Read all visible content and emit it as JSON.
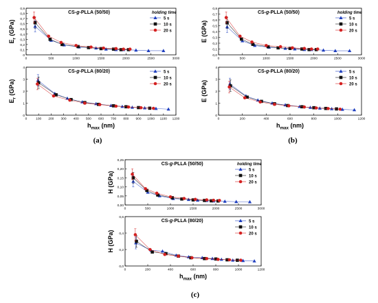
{
  "chart_data": [
    {
      "type": "scatter",
      "subplot": "a-top",
      "title": "CS-g-PLLA (50/50)",
      "ylabel": "E_r (GPa)",
      "legend_title": "holding time",
      "ylim": [
        0,
        0.9
      ],
      "yticks": [
        "0",
        "0,1",
        "0,2",
        "0,3",
        "0,4",
        "0,5",
        "0,6",
        "0,7",
        "0,8",
        "0,9"
      ],
      "xlim": [
        0,
        3000
      ],
      "xticks": [
        "0",
        "500",
        "1000",
        "1500",
        "2000",
        "2500",
        "3000"
      ],
      "series": [
        {
          "name": "5 s",
          "color": "#1f3fbf",
          "marker": "triangle",
          "x": [
            180,
            500,
            760,
            1060,
            1400,
            1600,
            1800,
            1950,
            2200,
            2450,
            2750
          ],
          "y": [
            0.55,
            0.28,
            0.19,
            0.15,
            0.13,
            0.11,
            0.1,
            0.1,
            0.09,
            0.08,
            0.08
          ]
        },
        {
          "name": "10 s",
          "color": "#111111",
          "marker": "square",
          "x": [
            180,
            480,
            720,
            1040,
            1250,
            1500,
            1750,
            1900,
            2050
          ],
          "y": [
            0.62,
            0.3,
            0.2,
            0.16,
            0.14,
            0.12,
            0.11,
            0.1,
            0.1
          ]
        },
        {
          "name": "20 s",
          "color": "#d42020",
          "marker": "circle",
          "x": [
            160,
            450,
            700,
            1000,
            1300,
            1550,
            1800,
            1950,
            2080
          ],
          "y": [
            0.72,
            0.36,
            0.24,
            0.18,
            0.15,
            0.13,
            0.12,
            0.11,
            0.11
          ]
        }
      ]
    },
    {
      "type": "scatter",
      "subplot": "a-bottom",
      "title": "CS-g-PLLA (80/20)",
      "ylabel": "E_r (GPa)",
      "xlabel": "h_max (nm)",
      "legend_title": "",
      "ylim": [
        0,
        4
      ],
      "yticks": [
        "0",
        "1",
        "2",
        "3",
        "4"
      ],
      "xlim": [
        0,
        1200
      ],
      "xticks": [
        "0",
        "100",
        "200",
        "300",
        "400",
        "500",
        "600",
        "700",
        "800",
        "900",
        "1000",
        "1100",
        "1200"
      ],
      "series": [
        {
          "name": "5 s",
          "color": "#1f3fbf",
          "marker": "triangle",
          "x": [
            95,
            230,
            330,
            450,
            560,
            680,
            770,
            850,
            950,
            1040,
            1140
          ],
          "y": [
            2.9,
            1.8,
            1.4,
            1.1,
            0.95,
            0.8,
            0.72,
            0.65,
            0.6,
            0.55,
            0.5
          ]
        },
        {
          "name": "10 s",
          "color": "#111111",
          "marker": "square",
          "x": [
            100,
            240,
            360,
            470,
            580,
            700,
            800,
            900,
            990
          ],
          "y": [
            2.7,
            1.7,
            1.3,
            1.05,
            0.9,
            0.78,
            0.7,
            0.63,
            0.58
          ]
        },
        {
          "name": "20 s",
          "color": "#d42020",
          "marker": "circle",
          "x": [
            90,
            220,
            350,
            470,
            590,
            720,
            820,
            920,
            1020
          ],
          "y": [
            2.6,
            1.6,
            1.25,
            1.0,
            0.88,
            0.75,
            0.68,
            0.62,
            0.57
          ]
        }
      ]
    },
    {
      "type": "scatter",
      "subplot": "b-top",
      "title": "CS-g-PLLA (50/50)",
      "ylabel": "E (GPa)",
      "legend_title": "holding time",
      "ylim": [
        0,
        0.8
      ],
      "yticks": [
        "0,0",
        "0,1",
        "0,2",
        "0,3",
        "0,4",
        "0,5",
        "0,6",
        "0,7",
        "0,8"
      ],
      "xlim": [
        0,
        3000
      ],
      "xticks": [
        "0",
        "500",
        "1000",
        "1500",
        "2000",
        "2500",
        "3000"
      ],
      "series": [
        {
          "name": "5 s",
          "color": "#1f3fbf",
          "marker": "triangle",
          "x": [
            180,
            500,
            760,
            1060,
            1400,
            1600,
            1800,
            1950,
            2200,
            2450,
            2750
          ],
          "y": [
            0.48,
            0.24,
            0.16,
            0.13,
            0.11,
            0.1,
            0.09,
            0.09,
            0.08,
            0.07,
            0.07
          ]
        },
        {
          "name": "10 s",
          "color": "#111111",
          "marker": "square",
          "x": [
            180,
            480,
            720,
            1040,
            1250,
            1500,
            1750,
            1900,
            2050
          ],
          "y": [
            0.55,
            0.27,
            0.18,
            0.14,
            0.12,
            0.11,
            0.1,
            0.09,
            0.09
          ]
        },
        {
          "name": "20 s",
          "color": "#d42020",
          "marker": "circle",
          "x": [
            160,
            450,
            700,
            1000,
            1300,
            1550,
            1800,
            1950,
            2080
          ],
          "y": [
            0.64,
            0.32,
            0.22,
            0.16,
            0.14,
            0.12,
            0.11,
            0.1,
            0.1
          ]
        }
      ]
    },
    {
      "type": "scatter",
      "subplot": "b-bottom",
      "title": "CS-g-PLLA (80/20)",
      "ylabel": "E (GPa)",
      "xlabel": "h_max (nm)",
      "legend_title": "",
      "ylim": [
        0,
        4
      ],
      "yticks": [
        "0",
        "1",
        "2",
        "3",
        "4"
      ],
      "xlim": [
        0,
        1200
      ],
      "xticks": [
        "0",
        "200",
        "400",
        "600",
        "800",
        "1000",
        "1200"
      ],
      "series": [
        {
          "name": "5 s",
          "color": "#1f3fbf",
          "marker": "triangle",
          "x": [
            95,
            230,
            330,
            450,
            560,
            680,
            770,
            850,
            950,
            1040,
            1140
          ],
          "y": [
            2.6,
            1.6,
            1.25,
            1.0,
            0.85,
            0.72,
            0.64,
            0.58,
            0.53,
            0.48,
            0.44
          ]
        },
        {
          "name": "10 s",
          "color": "#111111",
          "marker": "square",
          "x": [
            100,
            240,
            360,
            470,
            580,
            700,
            800,
            900,
            990
          ],
          "y": [
            2.45,
            1.5,
            1.15,
            0.95,
            0.8,
            0.7,
            0.62,
            0.56,
            0.52
          ]
        },
        {
          "name": "20 s",
          "color": "#d42020",
          "marker": "circle",
          "x": [
            90,
            220,
            350,
            470,
            590,
            720,
            820,
            920,
            1020
          ],
          "y": [
            2.35,
            1.45,
            1.1,
            0.9,
            0.78,
            0.68,
            0.6,
            0.55,
            0.5
          ]
        }
      ]
    },
    {
      "type": "scatter",
      "subplot": "c-top",
      "title": "CS-g-PLLA (50/50)",
      "ylabel": "H (GPa)",
      "legend_title": "holding time",
      "ylim": [
        0,
        0.25
      ],
      "yticks": [
        "0,00",
        "0,05",
        "0,10",
        "0,15",
        "0,20",
        "0,25"
      ],
      "xlim": [
        0,
        3000
      ],
      "xticks": [
        "0",
        "500",
        "1000",
        "1500",
        "2000",
        "2500",
        "3000"
      ],
      "series": [
        {
          "name": "5 s",
          "color": "#1f3fbf",
          "marker": "triangle",
          "x": [
            180,
            500,
            760,
            1060,
            1400,
            1600,
            1800,
            1950,
            2200,
            2450,
            2750
          ],
          "y": [
            0.13,
            0.07,
            0.05,
            0.035,
            0.03,
            0.026,
            0.024,
            0.022,
            0.02,
            0.018,
            0.017
          ]
        },
        {
          "name": "10 s",
          "color": "#111111",
          "marker": "square",
          "x": [
            180,
            480,
            720,
            1040,
            1250,
            1500,
            1750,
            1900,
            2050
          ],
          "y": [
            0.15,
            0.08,
            0.055,
            0.04,
            0.033,
            0.028,
            0.025,
            0.023,
            0.022
          ]
        },
        {
          "name": "20 s",
          "color": "#d42020",
          "marker": "circle",
          "x": [
            160,
            450,
            700,
            1000,
            1300,
            1550,
            1800,
            1950,
            2080
          ],
          "y": [
            0.17,
            0.09,
            0.065,
            0.045,
            0.036,
            0.031,
            0.028,
            0.026,
            0.025
          ]
        }
      ]
    },
    {
      "type": "scatter",
      "subplot": "c-bottom",
      "title": "CS-g-PLLA (80/20)",
      "ylabel": "H (GPa)",
      "xlabel": "h_max (nm)",
      "legend_title": "",
      "ylim": [
        0,
        0.6
      ],
      "yticks": [
        "0,0",
        "0,2",
        "0,4",
        "0,6"
      ],
      "xlim": [
        0,
        1200
      ],
      "xticks": [
        "0",
        "200",
        "400",
        "600",
        "800",
        "1000",
        "1200"
      ],
      "series": [
        {
          "name": "5 s",
          "color": "#1f3fbf",
          "marker": "triangle",
          "x": [
            95,
            230,
            330,
            450,
            560,
            680,
            770,
            850,
            950,
            1040,
            1140
          ],
          "y": [
            0.28,
            0.19,
            0.18,
            0.13,
            0.11,
            0.1,
            0.09,
            0.08,
            0.07,
            0.065,
            0.06
          ]
        },
        {
          "name": "10 s",
          "color": "#111111",
          "marker": "square",
          "x": [
            100,
            240,
            360,
            470,
            580,
            700,
            800,
            900,
            990
          ],
          "y": [
            0.3,
            0.17,
            0.15,
            0.12,
            0.1,
            0.09,
            0.085,
            0.075,
            0.07
          ]
        },
        {
          "name": "20 s",
          "color": "#d42020",
          "marker": "circle",
          "x": [
            90,
            220,
            350,
            470,
            590,
            720,
            820,
            920,
            1020
          ],
          "y": [
            0.38,
            0.2,
            0.14,
            0.12,
            0.1,
            0.09,
            0.08,
            0.075,
            0.07
          ]
        }
      ]
    }
  ],
  "figure": {
    "panel_labels": [
      "(a)",
      "(b)",
      "(c)"
    ]
  }
}
